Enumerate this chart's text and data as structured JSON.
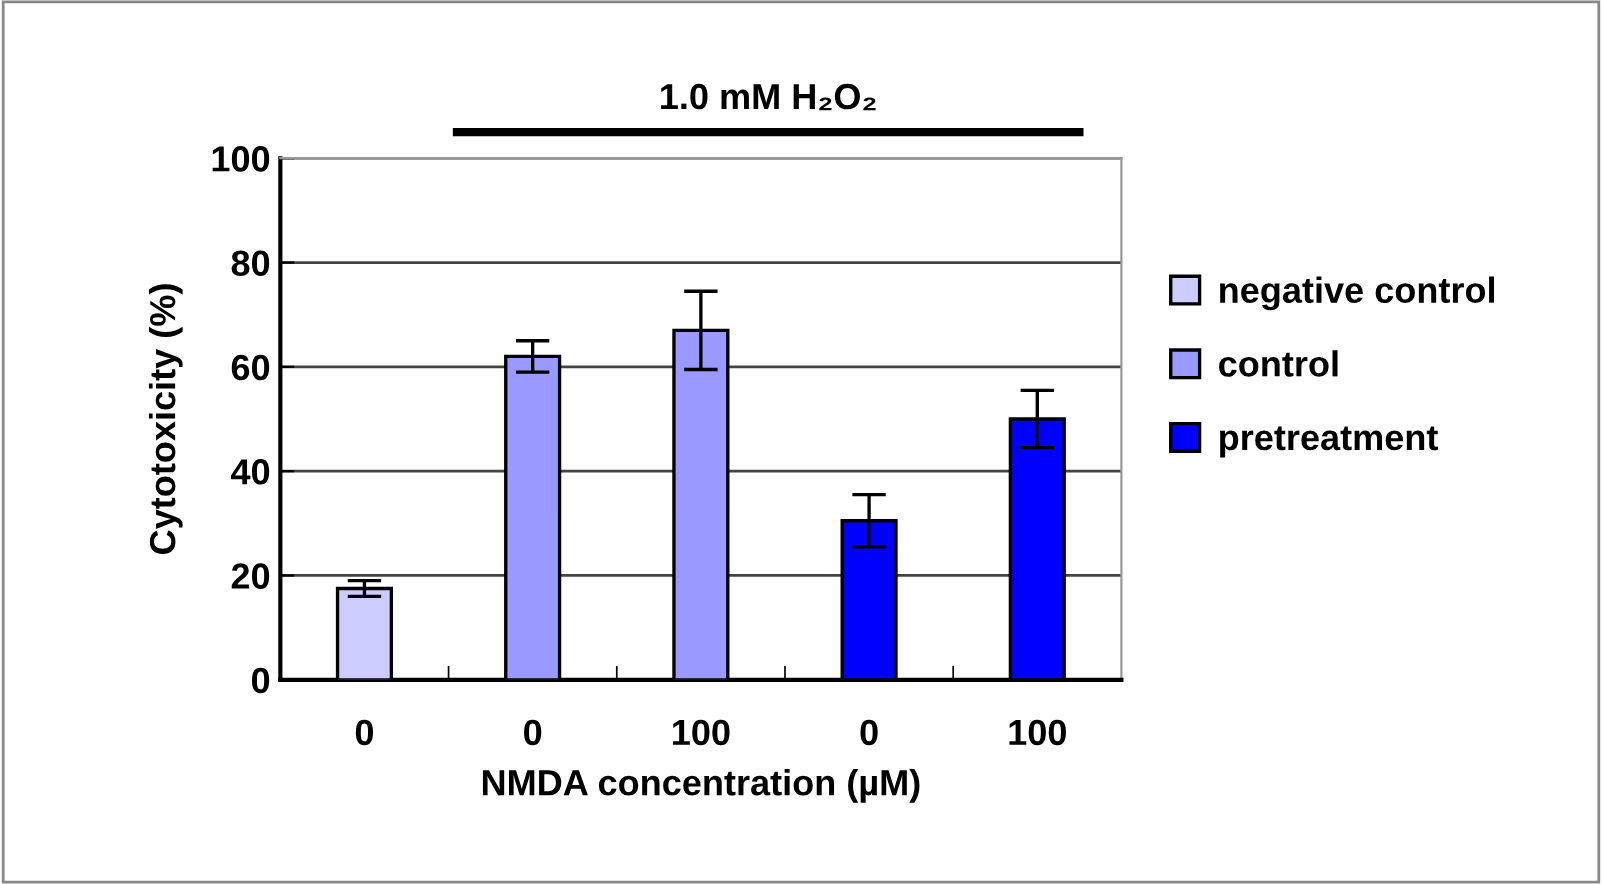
{
  "chart_data": {
    "type": "bar",
    "categories": [
      "0",
      "0",
      "100",
      "0",
      "100"
    ],
    "series": [
      {
        "name": "negative control",
        "color": "#ccccff",
        "values": [
          17.5,
          null,
          null,
          null,
          null
        ],
        "errors": [
          1.5,
          null,
          null,
          null,
          null
        ]
      },
      {
        "name": "control",
        "color": "#9999ff",
        "values": [
          null,
          62,
          67,
          null,
          null
        ],
        "errors": [
          null,
          3,
          7.5,
          null,
          null
        ]
      },
      {
        "name": "pretreatment",
        "color": "#0000ff",
        "values": [
          null,
          null,
          null,
          30.5,
          50
        ],
        "errors": [
          null,
          null,
          null,
          5,
          5.5
        ]
      }
    ],
    "xlabel": "NMDA concentration (µM)",
    "ylabel": "Cytotoxicity (%)",
    "annotations": [
      "1.0 mM H₂O₂"
    ],
    "ylim": [
      0,
      100
    ],
    "yticks": [
      0,
      20,
      40,
      60,
      80,
      100
    ],
    "grid": "y",
    "legend": "right"
  }
}
